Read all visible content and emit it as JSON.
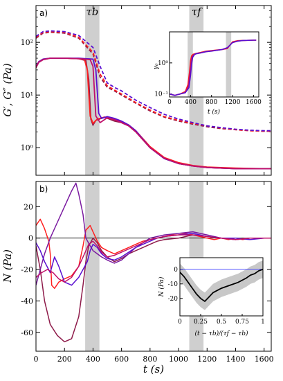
{
  "chart_data": [
    {
      "type": "line",
      "panel_label": "a)",
      "ylabel": "G′, G″ (Pa)",
      "xlabel": "",
      "y_scale": "log",
      "xlim": [
        0,
        1650
      ],
      "ylim": [
        0.3,
        500
      ],
      "x_ticks": [
        0,
        200,
        400,
        600,
        800,
        1000,
        1200,
        1400,
        1600
      ],
      "y_tick_labels": [
        "10⁰",
        "10¹",
        "10²"
      ],
      "y_tick_values": [
        1,
        10,
        100
      ],
      "shaded_bands": [
        {
          "label": "τb",
          "from": 345,
          "to": 445
        },
        {
          "label": "τf",
          "from": 1075,
          "to": 1175
        }
      ],
      "colors": [
        "#8e1b4a",
        "#ff2020",
        "#5a0fd0",
        "#c0106a",
        "#7a1aa0"
      ],
      "series": [
        {
          "kind": "solid",
          "color": "#8e1b4a",
          "x": [
            0,
            20,
            50,
            100,
            200,
            300,
            350,
            370,
            385,
            400,
            420,
            480,
            550,
            600,
            650,
            700,
            800,
            900,
            1000,
            1100,
            1200,
            1400,
            1600,
            1650
          ],
          "y": [
            33,
            42,
            47,
            50,
            50,
            49,
            45,
            20,
            3.5,
            2.7,
            3.3,
            3.8,
            3.2,
            3.0,
            2.6,
            2.0,
            1.0,
            0.62,
            0.5,
            0.45,
            0.42,
            0.4,
            0.4,
            0.4
          ]
        },
        {
          "kind": "solid",
          "color": "#ff2020",
          "x": [
            0,
            20,
            50,
            100,
            200,
            300,
            340,
            360,
            380,
            400,
            430,
            480,
            550,
            600,
            650,
            700,
            800,
            900,
            1000,
            1100,
            1200,
            1400,
            1600,
            1650
          ],
          "y": [
            34,
            43,
            48,
            50,
            50,
            49,
            47,
            30,
            4.0,
            2.9,
            3.5,
            3.8,
            3.4,
            3.1,
            2.7,
            2.1,
            1.05,
            0.65,
            0.52,
            0.46,
            0.43,
            0.41,
            0.4,
            0.4
          ]
        },
        {
          "kind": "solid",
          "color": "#5a0fd0",
          "x": [
            0,
            20,
            50,
            100,
            200,
            300,
            400,
            420,
            440,
            460,
            500,
            550,
            600,
            650,
            700,
            800,
            900,
            1000,
            1100,
            1200,
            1400,
            1600,
            1650
          ],
          "y": [
            35,
            43,
            48,
            50,
            50,
            50,
            48,
            30,
            4.5,
            3.6,
            3.9,
            3.6,
            3.2,
            2.7,
            2.1,
            1.0,
            0.62,
            0.5,
            0.45,
            0.42,
            0.4,
            0.4,
            0.4
          ]
        },
        {
          "kind": "solid",
          "color": "#c0106a",
          "x": [
            0,
            20,
            50,
            100,
            200,
            300,
            380,
            400,
            420,
            450,
            500,
            550,
            600,
            650,
            700,
            800,
            900,
            1000,
            1100,
            1200,
            1400,
            1600,
            1650
          ],
          "y": [
            34,
            42,
            47,
            50,
            50,
            49,
            47,
            35,
            4.0,
            3.0,
            3.7,
            3.4,
            3.0,
            2.6,
            2.0,
            1.0,
            0.63,
            0.5,
            0.45,
            0.42,
            0.4,
            0.4,
            0.4
          ]
        },
        {
          "kind": "dashed",
          "color": "#8e1b4a",
          "x": [
            0,
            50,
            100,
            200,
            300,
            400,
            450,
            500,
            550,
            600,
            700,
            800,
            900,
            1000,
            1100,
            1200,
            1300,
            1400,
            1500,
            1600,
            1650
          ],
          "y": [
            120,
            150,
            155,
            150,
            120,
            60,
            22,
            14,
            12,
            10,
            7,
            5,
            3.8,
            3.2,
            2.8,
            2.5,
            2.3,
            2.2,
            2.1,
            2.05,
            2.05
          ]
        },
        {
          "kind": "dashed",
          "color": "#ff2020",
          "x": [
            0,
            50,
            100,
            200,
            300,
            400,
            450,
            500,
            550,
            600,
            700,
            800,
            900,
            1000,
            1100,
            1200,
            1300,
            1400,
            1500,
            1600,
            1650
          ],
          "y": [
            125,
            155,
            160,
            155,
            125,
            65,
            25,
            15,
            12.5,
            10.5,
            7.2,
            5.2,
            3.9,
            3.3,
            2.9,
            2.6,
            2.35,
            2.2,
            2.1,
            2.05,
            2.05
          ]
        },
        {
          "kind": "dashed",
          "color": "#5a0fd0",
          "x": [
            0,
            50,
            100,
            200,
            300,
            400,
            450,
            500,
            550,
            600,
            700,
            800,
            900,
            1000,
            1100,
            1200,
            1300,
            1400,
            1500,
            1600,
            1650
          ],
          "y": [
            130,
            160,
            165,
            160,
            135,
            80,
            35,
            17,
            14,
            12,
            8,
            5.8,
            4.3,
            3.5,
            3.0,
            2.6,
            2.4,
            2.25,
            2.15,
            2.1,
            2.1
          ]
        }
      ],
      "inset": {
        "ylabel": "γ₀",
        "xlabel": "t (s)",
        "y_scale": "log",
        "xlim": [
          0,
          1700
        ],
        "ylim": [
          0.08,
          10
        ],
        "x_ticks": [
          0,
          400,
          800,
          1200,
          1600
        ],
        "y_tick_labels": [
          "10⁻¹",
          "10⁰"
        ],
        "y_tick_values": [
          0.1,
          1
        ],
        "shaded_bands": [
          {
            "from": 345,
            "to": 445
          },
          {
            "from": 1075,
            "to": 1175
          }
        ],
        "series": [
          {
            "color": "#ff2020",
            "x": [
              0,
              100,
              200,
              300,
              350,
              380,
              400,
              420,
              450,
              500,
              600,
              700,
              800,
              900,
              1000,
              1100,
              1200,
              1300,
              1400,
              1600,
              1650
            ],
            "y": [
              0.1,
              0.09,
              0.1,
              0.12,
              0.2,
              0.5,
              1.2,
              1.7,
              1.9,
              2.0,
              2.2,
              2.4,
              2.5,
              2.6,
              2.7,
              2.9,
              4.8,
              5.2,
              5.3,
              5.4,
              5.4
            ]
          },
          {
            "color": "#c0106a",
            "x": [
              0,
              100,
              200,
              300,
              360,
              390,
              410,
              430,
              460,
              500,
              600,
              700,
              800,
              900,
              1000,
              1100,
              1200,
              1300,
              1400,
              1600,
              1650
            ],
            "y": [
              0.1,
              0.09,
              0.1,
              0.11,
              0.18,
              0.5,
              1.1,
              1.6,
              1.85,
              2.0,
              2.15,
              2.3,
              2.45,
              2.55,
              2.7,
              3.0,
              4.6,
              5.1,
              5.3,
              5.4,
              5.4
            ]
          },
          {
            "color": "#5a0fd0",
            "x": [
              0,
              100,
              200,
              300,
              370,
              400,
              420,
              440,
              470,
              500,
              600,
              700,
              800,
              900,
              1000,
              1100,
              1200,
              1300,
              1400,
              1600,
              1650
            ],
            "y": [
              0.1,
              0.09,
              0.1,
              0.11,
              0.16,
              0.4,
              0.9,
              1.5,
              1.8,
              1.95,
              2.1,
              2.3,
              2.4,
              2.55,
              2.7,
              3.1,
              4.5,
              5.0,
              5.3,
              5.4,
              5.4
            ]
          }
        ]
      }
    },
    {
      "type": "line",
      "panel_label": "b)",
      "ylabel": "N (Pa)",
      "xlabel": "t (s)",
      "xlim": [
        0,
        1650
      ],
      "ylim": [
        -72,
        36
      ],
      "x_ticks": [
        0,
        200,
        400,
        600,
        800,
        1000,
        1200,
        1400,
        1600
      ],
      "y_ticks": [
        -60,
        -40,
        -20,
        0,
        20
      ],
      "zero_line": true,
      "shaded_bands": [
        {
          "from": 345,
          "to": 445
        },
        {
          "from": 1075,
          "to": 1175
        }
      ],
      "series": [
        {
          "color": "#ff2020",
          "x": [
            0,
            30,
            60,
            90,
            100,
            110,
            130,
            160,
            200,
            250,
            300,
            330,
            350,
            380,
            400,
            430,
            460,
            500,
            550,
            600,
            650,
            700,
            750,
            800,
            850,
            900,
            950,
            1000,
            1050,
            1100,
            1150,
            1200,
            1250,
            1300,
            1350,
            1400,
            1450,
            1500,
            1550,
            1600,
            1650
          ],
          "y": [
            8,
            12,
            6,
            -2,
            -10,
            -30,
            -32,
            -28,
            -26,
            -24,
            -18,
            -5,
            5,
            8,
            4,
            -2,
            -6,
            -8,
            -10,
            -8,
            -6,
            -4,
            -2,
            -1,
            0,
            1,
            2,
            2,
            3,
            2,
            1,
            0,
            -1,
            0,
            -1,
            0,
            -1,
            0,
            0,
            0,
            0
          ]
        },
        {
          "color": "#8e1b4a",
          "x": [
            0,
            30,
            60,
            100,
            150,
            200,
            250,
            300,
            330,
            350,
            370,
            400,
            430,
            460,
            500,
            550,
            600,
            650,
            700,
            750,
            800,
            850,
            900,
            1000,
            1100,
            1200,
            1300,
            1400,
            1500,
            1600,
            1650
          ],
          "y": [
            -5,
            -20,
            -40,
            -55,
            -62,
            -66,
            -64,
            -50,
            -30,
            -15,
            -5,
            0,
            -3,
            -8,
            -12,
            -15,
            -13,
            -10,
            -8,
            -6,
            -4,
            -2,
            -1,
            0,
            2,
            1,
            0,
            -1,
            0,
            0,
            0
          ]
        },
        {
          "color": "#7a1aa0",
          "x": [
            0,
            30,
            60,
            100,
            150,
            200,
            250,
            280,
            300,
            330,
            350,
            380,
            400,
            430,
            460,
            500,
            550,
            600,
            650,
            700,
            750,
            800,
            900,
            1000,
            1100,
            1200,
            1300,
            1400,
            1500,
            1600,
            1650
          ],
          "y": [
            -30,
            -20,
            -10,
            0,
            10,
            20,
            30,
            35,
            28,
            15,
            0,
            -5,
            -8,
            -10,
            -12,
            -14,
            -16,
            -14,
            -10,
            -6,
            -3,
            0,
            2,
            3,
            4,
            2,
            0,
            -1,
            0,
            0,
            0
          ]
        },
        {
          "color": "#5a0fd0",
          "x": [
            0,
            30,
            60,
            100,
            130,
            160,
            200,
            250,
            300,
            330,
            360,
            380,
            400,
            430,
            460,
            500,
            550,
            600,
            650,
            700,
            750,
            800,
            850,
            900,
            1000,
            1100,
            1200,
            1300,
            1400,
            1500,
            1600,
            1650
          ],
          "y": [
            -3,
            -8,
            -15,
            -22,
            -12,
            -18,
            -28,
            -30,
            -25,
            -20,
            -15,
            -8,
            -4,
            -6,
            -10,
            -13,
            -14,
            -12,
            -9,
            -6,
            -4,
            -2,
            0,
            1,
            2,
            3,
            1,
            0,
            0,
            -1,
            0,
            0
          ]
        },
        {
          "color": "#c0106a",
          "x": [
            0,
            40,
            80,
            120,
            160,
            200,
            250,
            300,
            340,
            370,
            400,
            430,
            460,
            500,
            550,
            600,
            650,
            700,
            750,
            800,
            900,
            1000,
            1100,
            1200,
            1300,
            1400,
            1500,
            1600,
            1650
          ],
          "y": [
            -25,
            -22,
            -20,
            -22,
            -26,
            -28,
            -25,
            -18,
            -10,
            -4,
            -2,
            -5,
            -9,
            -12,
            -11,
            -9,
            -7,
            -5,
            -3,
            -1,
            1,
            2,
            2,
            1,
            0,
            -1,
            0,
            0,
            0
          ]
        }
      ],
      "inset": {
        "ylabel": "N (Pa)",
        "xlabel": "(t − τb)/(τf − τb)",
        "xlim": [
          0,
          1
        ],
        "ylim": [
          -32,
          8
        ],
        "x_ticks": [
          0,
          0.25,
          0.5,
          0.75,
          1
        ],
        "x_tick_labels": [
          "0",
          "0.25",
          "0.5",
          "0.75",
          "1"
        ],
        "y_ticks": [
          -20,
          -10,
          0
        ],
        "mean": {
          "x": [
            0,
            0.05,
            0.1,
            0.15,
            0.2,
            0.25,
            0.3,
            0.35,
            0.4,
            0.5,
            0.6,
            0.7,
            0.8,
            0.85,
            0.9,
            0.95,
            1.0
          ],
          "y": [
            -2,
            -5,
            -9,
            -13,
            -17,
            -20,
            -22,
            -19,
            -16,
            -13,
            -11,
            -9,
            -6,
            -4,
            -3,
            -1,
            0
          ]
        },
        "band_halfwidth": 6
      }
    }
  ]
}
